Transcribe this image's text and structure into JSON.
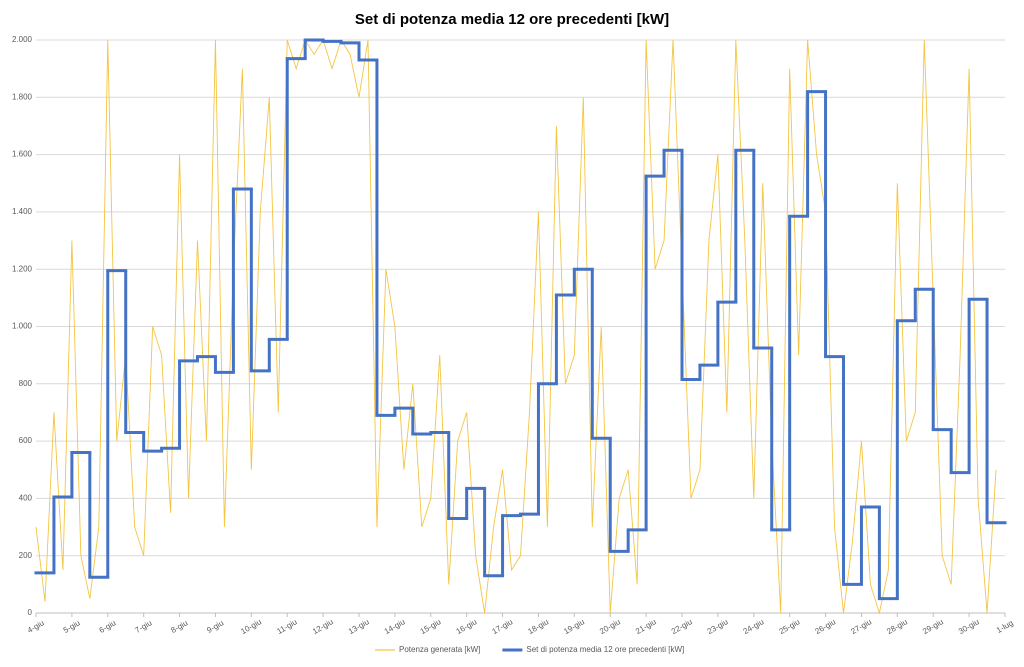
{
  "chart_data": {
    "type": "line",
    "title": "Set di potenza media 12 ore precedenti [kW]",
    "xlim": [
      0,
      27
    ],
    "xticks": [
      {
        "value": 0,
        "label": "4-giu"
      },
      {
        "value": 1,
        "label": "5-giu"
      },
      {
        "value": 2,
        "label": "6-giu"
      },
      {
        "value": 3,
        "label": "7-giu"
      },
      {
        "value": 4,
        "label": "8-giu"
      },
      {
        "value": 5,
        "label": "9-giu"
      },
      {
        "value": 6,
        "label": "10-giu"
      },
      {
        "value": 7,
        "label": "11-giu"
      },
      {
        "value": 8,
        "label": "12-giu"
      },
      {
        "value": 9,
        "label": "13-giu"
      },
      {
        "value": 10,
        "label": "14-giu"
      },
      {
        "value": 11,
        "label": "15-giu"
      },
      {
        "value": 12,
        "label": "16-giu"
      },
      {
        "value": 13,
        "label": "17-giu"
      },
      {
        "value": 14,
        "label": "18-giu"
      },
      {
        "value": 15,
        "label": "19-giu"
      },
      {
        "value": 16,
        "label": "20-giu"
      },
      {
        "value": 17,
        "label": "21-giu"
      },
      {
        "value": 18,
        "label": "22-giu"
      },
      {
        "value": 19,
        "label": "23-giu"
      },
      {
        "value": 20,
        "label": "24-giu"
      },
      {
        "value": 21,
        "label": "25-giu"
      },
      {
        "value": 22,
        "label": "26-giu"
      },
      {
        "value": 23,
        "label": "27-giu"
      },
      {
        "value": 24,
        "label": "28-giu"
      },
      {
        "value": 25,
        "label": "29-giu"
      },
      {
        "value": 26,
        "label": "30-giu"
      },
      {
        "value": 27,
        "label": "1-lug"
      }
    ],
    "ylim": [
      0,
      2000
    ],
    "yticks": [
      0,
      {
        "value": 200,
        "label": "200"
      },
      {
        "value": 400,
        "label": "400"
      },
      {
        "value": 600,
        "label": "600"
      },
      {
        "value": 800,
        "label": "800"
      },
      {
        "value": 1000,
        "label": "1.000"
      },
      {
        "value": 1200,
        "label": "1.200"
      },
      {
        "value": 1400,
        "label": "1.400"
      },
      {
        "value": 1600,
        "label": "1.600"
      },
      {
        "value": 1800,
        "label": "1.800"
      },
      {
        "value": 2000,
        "label": "2.000"
      }
    ],
    "grid": true,
    "series": [
      {
        "name": "Potenza generata [kW]",
        "color": "#f4c542",
        "style": "line",
        "x": [
          0,
          0.25,
          0.5,
          0.75,
          1,
          1.25,
          1.5,
          1.75,
          2,
          2.25,
          2.5,
          2.75,
          3,
          3.25,
          3.5,
          3.75,
          4,
          4.25,
          4.5,
          4.75,
          5,
          5.25,
          5.5,
          5.75,
          6,
          6.25,
          6.5,
          6.75,
          7,
          7.25,
          7.5,
          7.75,
          8,
          8.25,
          8.5,
          8.75,
          9,
          9.25,
          9.5,
          9.75,
          10,
          10.25,
          10.5,
          10.75,
          11,
          11.25,
          11.5,
          11.75,
          12,
          12.25,
          12.5,
          12.75,
          13,
          13.25,
          13.5,
          13.75,
          14,
          14.25,
          14.5,
          14.75,
          15,
          15.25,
          15.5,
          15.75,
          16,
          16.25,
          16.5,
          16.75,
          17,
          17.25,
          17.5,
          17.75,
          18,
          18.25,
          18.5,
          18.75,
          19,
          19.25,
          19.5,
          19.75,
          20,
          20.25,
          20.5,
          20.75,
          21,
          21.25,
          21.5,
          21.75,
          22,
          22.25,
          22.5,
          22.75,
          23,
          23.25,
          23.5,
          23.75,
          24,
          24.25,
          24.5,
          24.75,
          25,
          25.25,
          25.5,
          25.75,
          26,
          26.25,
          26.5,
          26.75
        ],
        "values": [
          300,
          40,
          700,
          150,
          1300,
          200,
          50,
          300,
          2000,
          600,
          900,
          300,
          200,
          1000,
          900,
          350,
          1600,
          400,
          1300,
          600,
          2000,
          300,
          1200,
          1900,
          500,
          1400,
          1800,
          700,
          2000,
          1900,
          2000,
          1950,
          2000,
          1900,
          2000,
          1950,
          1800,
          2000,
          300,
          1200,
          1000,
          500,
          800,
          300,
          400,
          900,
          100,
          600,
          700,
          200,
          0,
          300,
          500,
          150,
          200,
          700,
          1400,
          300,
          1700,
          800,
          900,
          1800,
          300,
          1000,
          0,
          400,
          500,
          100,
          2000,
          1200,
          1300,
          2000,
          1200,
          400,
          500,
          1300,
          1600,
          700,
          2000,
          1300,
          400,
          1500,
          600,
          0,
          1900,
          900,
          2000,
          1600,
          1400,
          300,
          0,
          250,
          600,
          100,
          0,
          150,
          1500,
          600,
          700,
          2000,
          1100,
          200,
          100,
          900,
          1900,
          400,
          0,
          500
        ]
      },
      {
        "name": "Set di potenza media 12 ore precedenti [kW]",
        "color": "#4472c4",
        "style": "step",
        "x": [
          0,
          0.5,
          1,
          1.5,
          2,
          2.5,
          3,
          3.5,
          4,
          4.5,
          5,
          5.5,
          6,
          6.5,
          7,
          7.5,
          8,
          8.5,
          9,
          9.5,
          10,
          10.5,
          11,
          11.5,
          12,
          12.5,
          13,
          13.5,
          14,
          14.5,
          15,
          15.5,
          16,
          16.5,
          17,
          17.5,
          18,
          18.5,
          19,
          19.5,
          20,
          20.5,
          21,
          21.5,
          22,
          22.5,
          23,
          23.5,
          24,
          24.5,
          25,
          25.5,
          26,
          26.5
        ],
        "values": [
          140,
          405,
          560,
          125,
          1195,
          630,
          565,
          575,
          880,
          895,
          840,
          1480,
          845,
          955,
          1935,
          2000,
          1995,
          1990,
          1930,
          690,
          715,
          625,
          630,
          330,
          435,
          130,
          340,
          345,
          800,
          1110,
          1200,
          610,
          215,
          290,
          1525,
          1615,
          815,
          865,
          1085,
          1615,
          925,
          290,
          1385,
          1820,
          895,
          100,
          370,
          50,
          1020,
          1130,
          640,
          490,
          1095,
          315
        ]
      }
    ]
  }
}
